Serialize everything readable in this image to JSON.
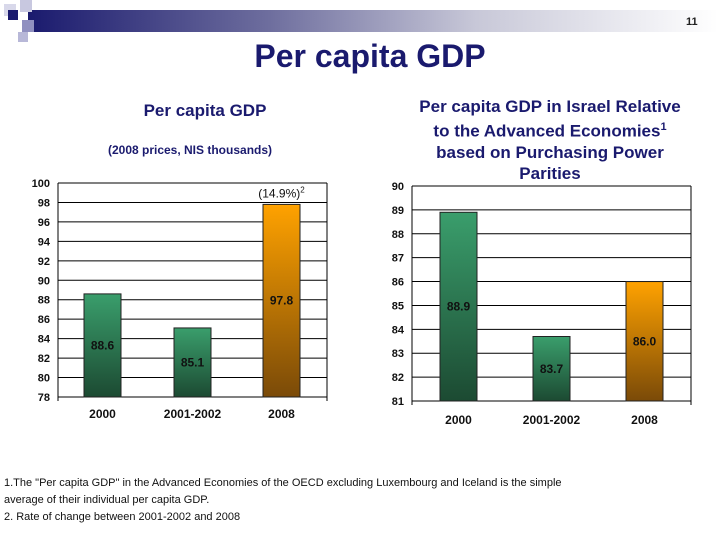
{
  "page_number": "11",
  "title": "Per capita GDP",
  "chart_data": [
    {
      "type": "bar",
      "title": "Per capita GDP",
      "subtitle": "(2008 prices, NIS thousands)",
      "categories": [
        "2000",
        "2001-2002",
        "2008"
      ],
      "values": [
        88.6,
        85.1,
        97.8
      ],
      "data_labels": [
        "88.6",
        "85.1",
        "97.8"
      ],
      "annotation": "(14.9%)",
      "annotation_sup": "2",
      "ylim": [
        78,
        100
      ],
      "yticks": [
        "78",
        "80",
        "82",
        "84",
        "86",
        "88",
        "90",
        "92",
        "94",
        "96",
        "98",
        "100"
      ],
      "grid": true,
      "colors": [
        "#2e8b5a",
        "#2e8b5a",
        "#f59a00"
      ]
    },
    {
      "type": "bar",
      "title": "Per capita GDP in Israel Relative to the Advanced Economies",
      "title_sup": "1",
      "title_lines": [
        "Per capita GDP in Israel Relative",
        "to the Advanced Economies",
        "based on Purchasing Power",
        "Parities"
      ],
      "categories": [
        "2000",
        "2001-2002",
        "2008"
      ],
      "values": [
        88.9,
        83.7,
        86.0
      ],
      "data_labels": [
        "88.9",
        "83.7",
        "86.0"
      ],
      "ylim": [
        81,
        90
      ],
      "yticks": [
        "81",
        "82",
        "83",
        "84",
        "85",
        "86",
        "87",
        "88",
        "89",
        "90"
      ],
      "grid": true,
      "colors": [
        "#2e8b5a",
        "#2e8b5a",
        "#f59a00"
      ]
    }
  ],
  "footnotes": [
    "1.The \"Per capita GDP\" in the Advanced Economies of the OECD excluding Luxembourg and Iceland is the simple",
    " average of their individual per capita GDP.",
    " 2. Rate of change between 2001-2002 and 2008"
  ]
}
